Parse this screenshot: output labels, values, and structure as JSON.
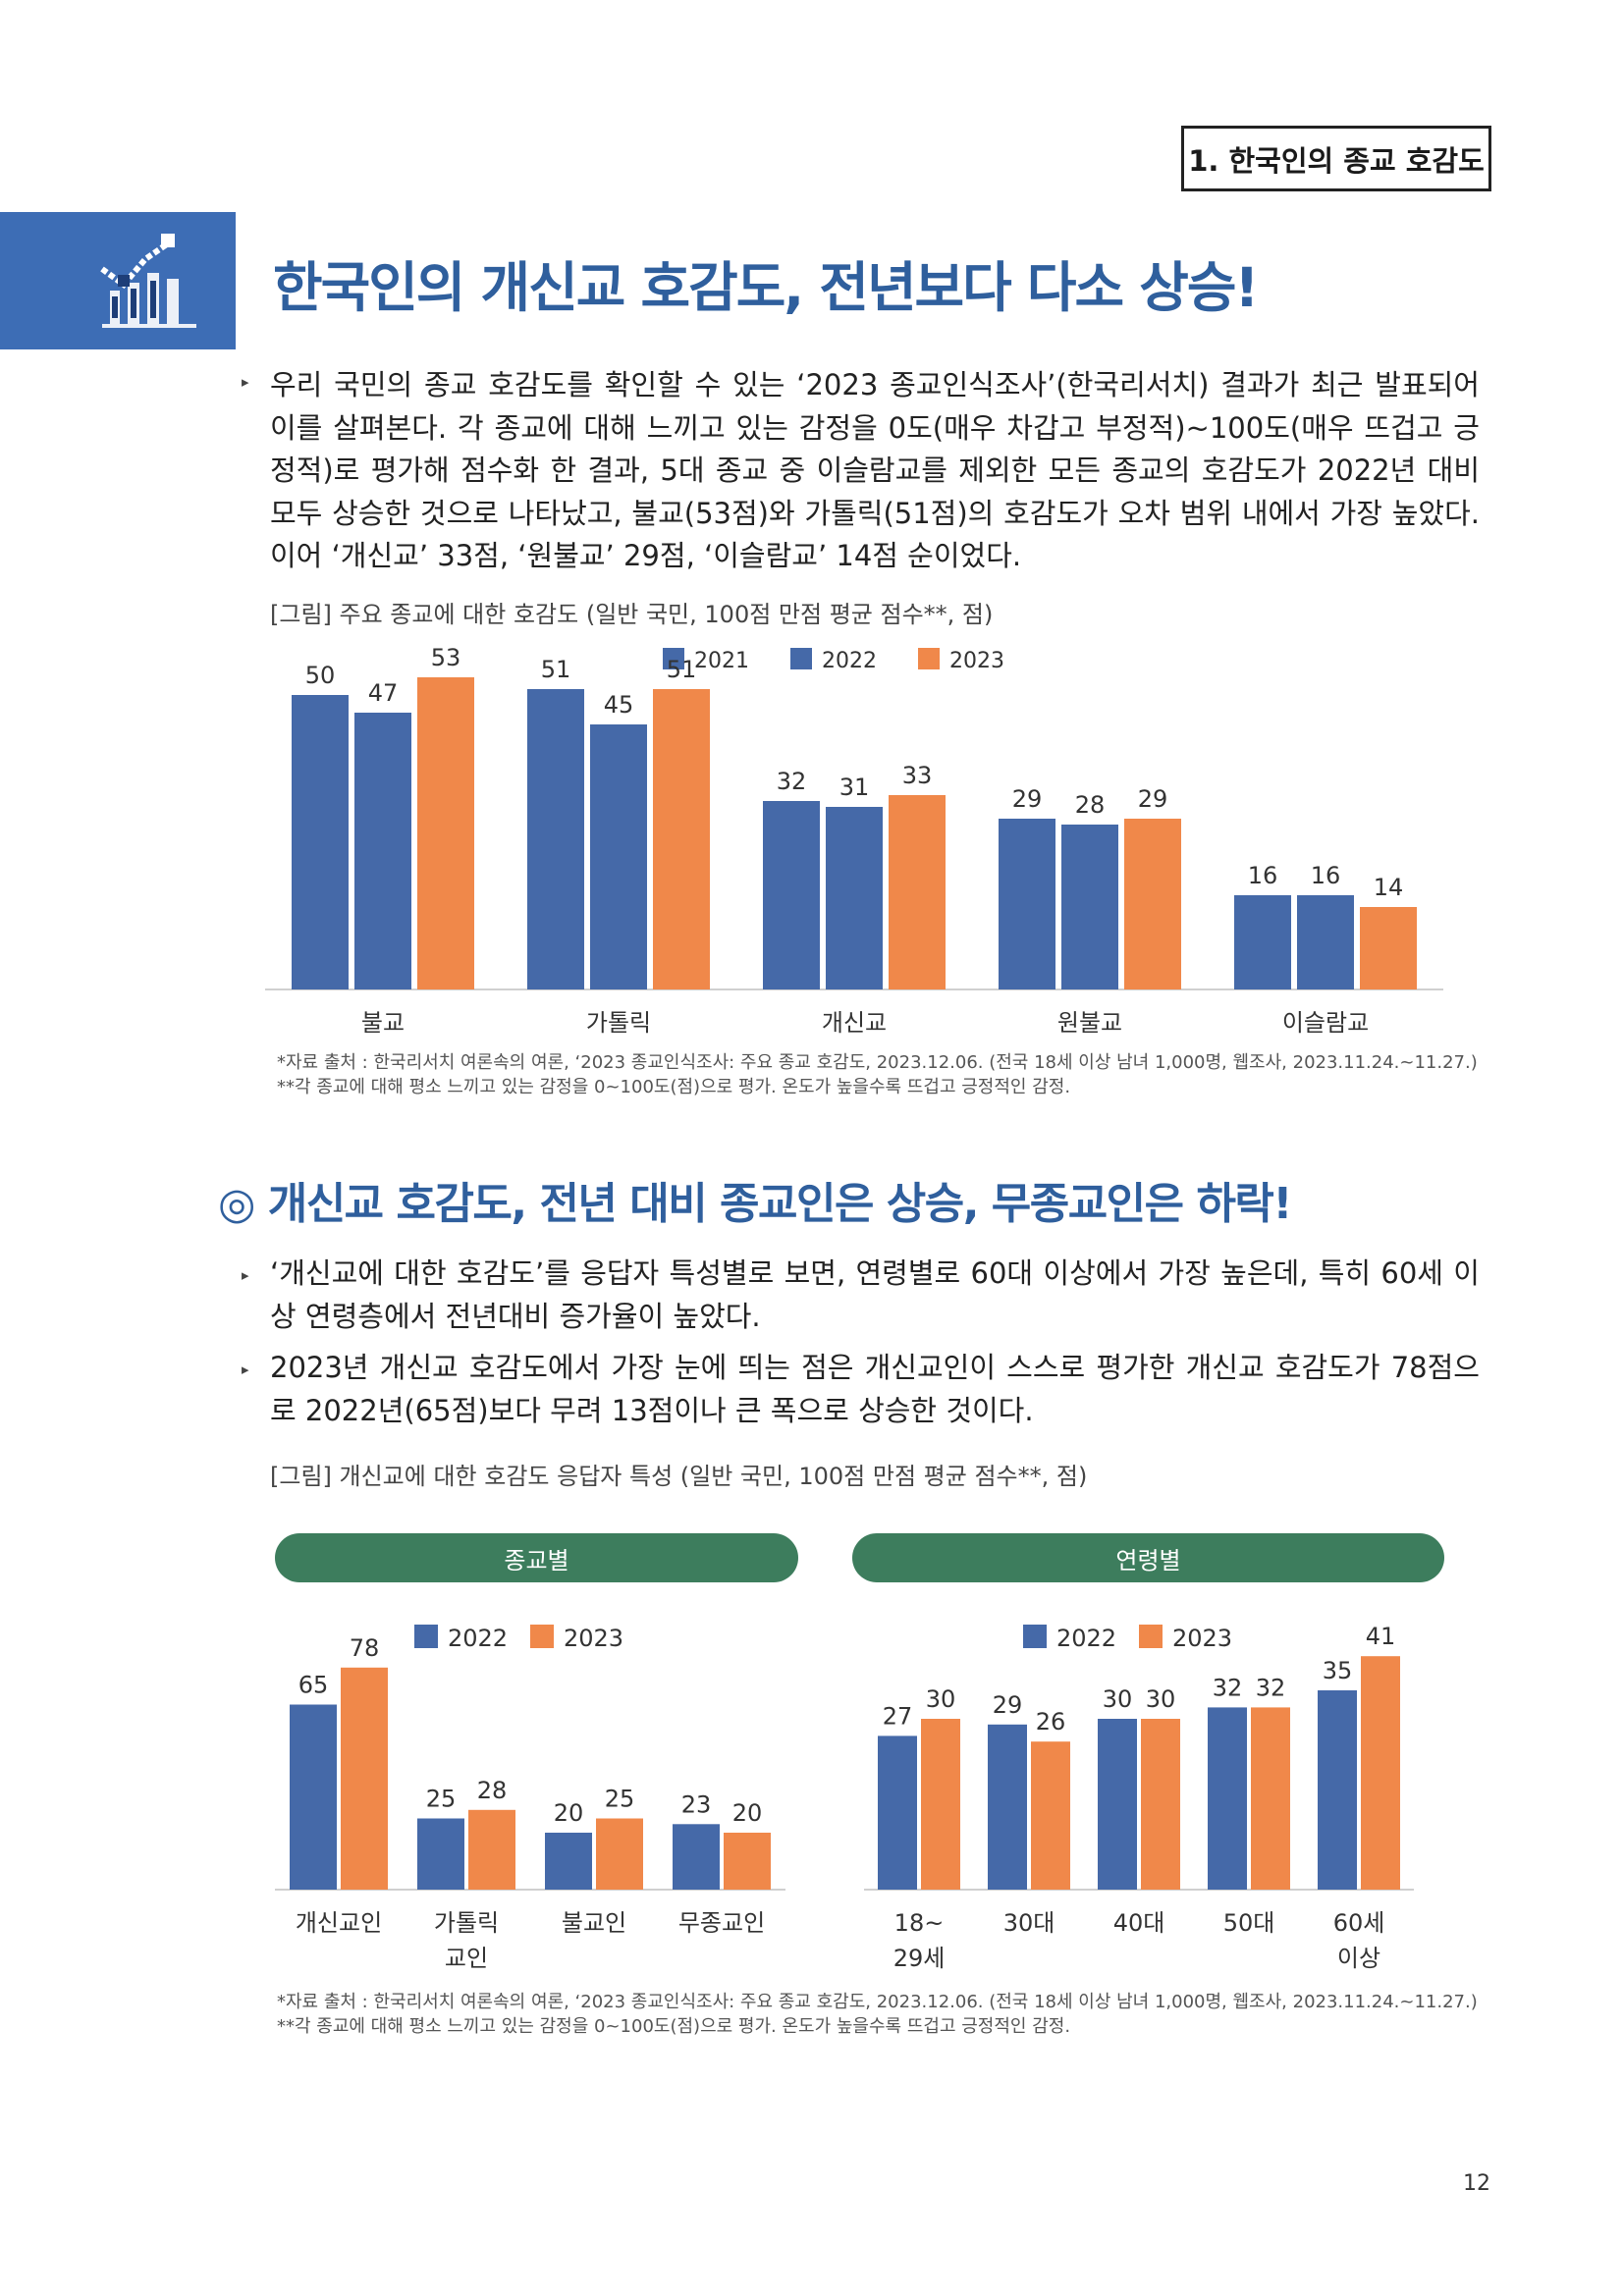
{
  "section_label": "1. 한국인의 종교 호감도",
  "main_title": "한국인의 개신교 호감도, 전년보다 다소 상승!",
  "intro_paragraph": "우리 국민의 종교 호감도를 확인할 수 있는 ‘2023 종교인식조사’(한국리서치) 결과가 최근 발표되어 이를 살펴본다. 각 종교에 대해 느끼고 있는 감정을 0도(매우 차갑고 부정적)~100도(매우 뜨겁고 긍정적)로 평가해 점수화 한 결과, 5대 종교 중 이슬람교를 제외한 모든 종교의 호감도가 2022년 대비 모두 상승한 것으로 나타났고, 불교(53점)와 가톨릭(51점)의 호감도가 오차 범위 내에서 가장 높았다. 이어 ‘개신교’ 33점, ‘원불교’ 29점, ‘이슬람교’ 14점 순이었다.",
  "figure1_caption": "[그림] 주요 종교에 대한 호감도 (일반 국민, 100점 만점 평균 점수**, 점)",
  "figure1_source_1": "*자료 출처 : 한국리서치 여론속의 여론, ‘2023 종교인식조사: 주요 종교 호감도, 2023.12.06. (전국 18세 이상 남녀 1,000명, 웹조사, 2023.11.24.~11.27.)",
  "figure1_source_2": "**각 종교에 대해 평소 느끼고 있는 감정을 0~100도(점)으로 평가. 온도가 높을수록 뜨겁고 긍정적인 감정.",
  "sub_title": "◎ 개신교 호감도, 전년 대비 종교인은 상승, 무종교인은 하락!",
  "bullet2_paragraph": "‘개신교에 대한 호감도’를 응답자 특성별로 보면, 연령별로 60대 이상에서 가장 높은데, 특히 60세 이상 연령층에서 전년대비 증가율이 높았다.",
  "bullet3_paragraph": "2023년 개신교 호감도에서 가장 눈에 띄는 점은 개신교인이 스스로 평가한 개신교 호감도가 78점으로 2022년(65점)보다 무려 13점이나 큰 폭으로 상승한 것이다.",
  "figure2_caption": "[그림] 개신교에 대한 호감도 응답자 특성 (일반 국민, 100점 만점 평균 점수**, 점)",
  "pill_religion": "종교별",
  "pill_age": "연령별",
  "figure2_source_1": "*자료 출처 : 한국리서치 여론속의 여론, ‘2023 종교인식조사: 주요 종교 호감도, 2023.12.06. (전국 18세 이상 남녀 1,000명, 웹조사, 2023.11.24.~11.27.)",
  "figure2_source_2": "**각 종교에 대해 평소 느끼고 있는 감정을 0~100도(점)으로 평가. 온도가 높을수록 뜨겁고 긍정적인 감정.",
  "page_number": "12",
  "colors": {
    "blue": "#4569a8",
    "orange": "#f0884a",
    "title_blue": "#2f5f9d",
    "pill_green": "#3d7d5d"
  },
  "chart_data": [
    {
      "type": "bar",
      "categories": [
        "불교",
        "가톨릭",
        "개신교",
        "원불교",
        "이슬람교"
      ],
      "series": [
        {
          "name": "2021",
          "values": [
            50,
            51,
            32,
            29,
            16
          ]
        },
        {
          "name": "2022",
          "values": [
            47,
            45,
            31,
            28,
            16
          ]
        },
        {
          "name": "2023",
          "values": [
            53,
            51,
            33,
            29,
            14
          ]
        }
      ],
      "legend": "top-center"
    },
    {
      "type": "bar",
      "categories": [
        "개신교인",
        "가톨릭\n교인",
        "불교인",
        "무종교인"
      ],
      "series": [
        {
          "name": "2022",
          "values": [
            65,
            25,
            20,
            23
          ]
        },
        {
          "name": "2023",
          "values": [
            78,
            28,
            25,
            20
          ]
        }
      ],
      "legend": "top-center"
    },
    {
      "type": "bar",
      "categories": [
        "18~\n29세",
        "30대",
        "40대",
        "50대",
        "60세\n이상"
      ],
      "series": [
        {
          "name": "2022",
          "values": [
            27,
            29,
            30,
            32,
            35
          ]
        },
        {
          "name": "2023",
          "values": [
            30,
            26,
            30,
            32,
            41
          ]
        }
      ],
      "legend": "top-center"
    }
  ]
}
